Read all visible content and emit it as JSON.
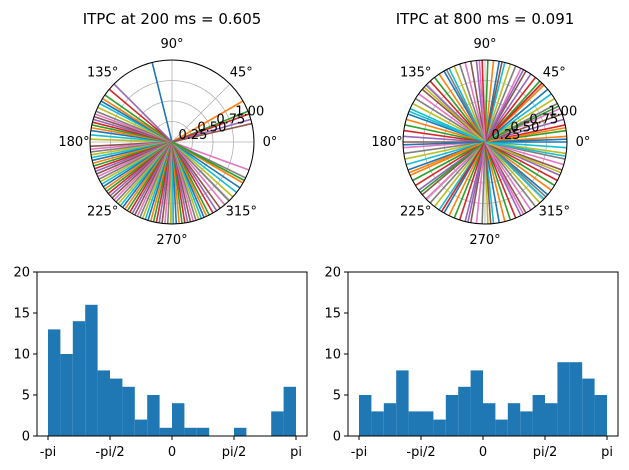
{
  "figure": {
    "background": "#ffffff",
    "bar_color": "#1f77b4",
    "tab10": [
      "#1f77b4",
      "#ff7f0e",
      "#2ca02c",
      "#d62728",
      "#9467bd",
      "#8c564b",
      "#e377c2",
      "#7f7f7f",
      "#bcbd22",
      "#17becf"
    ]
  },
  "chart_data": [
    {
      "type": "polar-lines",
      "title": "ITPC at 200 ms = 0.605",
      "angle_ticks": [
        "0°",
        "45°",
        "90°",
        "135°",
        "180°",
        "225°",
        "270°",
        "315°"
      ],
      "radius_ticks": [
        "0.25",
        "0.50",
        "0.75",
        "1.00"
      ],
      "rlim": [
        0,
        1
      ],
      "line_length": 1.0,
      "phase_angles_deg": [
        104,
        30,
        22,
        20,
        16,
        13,
        -20,
        -26,
        178,
        175,
        172,
        170,
        168,
        166,
        164,
        162,
        160,
        158,
        155,
        152,
        150,
        148,
        145,
        140,
        135,
        -177,
        -175,
        -173,
        -171,
        -169,
        -167,
        -165,
        -163,
        -161,
        -159,
        -157,
        -155,
        -153,
        -151,
        -149,
        -147,
        -145,
        -143,
        -141,
        -139,
        -137,
        -135,
        -133,
        -131,
        -129,
        -127,
        -125,
        -123,
        -121,
        -119,
        -117,
        -115,
        -113,
        -111,
        -109,
        -107,
        -105,
        -103,
        -101,
        -99,
        -97,
        -95,
        -93,
        -91,
        -89,
        -87,
        -85,
        -83,
        -81,
        -79,
        -77,
        -75,
        -73,
        -71,
        -69,
        -67,
        -65,
        -63,
        -60,
        -57,
        -54,
        -50,
        -46,
        -42,
        -38,
        -34,
        -30,
        -28
      ]
    },
    {
      "type": "polar-lines",
      "title": "ITPC at 800 ms = 0.091",
      "angle_ticks": [
        "0°",
        "45°",
        "90°",
        "135°",
        "180°",
        "225°",
        "270°",
        "315°"
      ],
      "radius_ticks": [
        "0.25",
        "0.50",
        "0.75",
        "1.00"
      ],
      "rlim": [
        0,
        1
      ],
      "line_length": 1.0,
      "phase_angles_deg": [
        0,
        4,
        8,
        12,
        16,
        20,
        24,
        28,
        32,
        36,
        40,
        44,
        48,
        52,
        56,
        60,
        64,
        68,
        72,
        76,
        80,
        84,
        88,
        92,
        96,
        100,
        104,
        108,
        112,
        116,
        120,
        124,
        128,
        132,
        136,
        140,
        144,
        148,
        152,
        156,
        160,
        164,
        168,
        172,
        176,
        180,
        184,
        188,
        192,
        196,
        200,
        204,
        208,
        212,
        216,
        220,
        224,
        228,
        232,
        236,
        240,
        244,
        248,
        252,
        256,
        260,
        264,
        268,
        272,
        276,
        280,
        284,
        288,
        292,
        296,
        300,
        304,
        308,
        312,
        316,
        320,
        324,
        328,
        332,
        336,
        340,
        344,
        348,
        352,
        356,
        2,
        10,
        26,
        46,
        62,
        78,
        94,
        118,
        138,
        158,
        182,
        202,
        218,
        238,
        258,
        274,
        298,
        318,
        338,
        350
      ]
    },
    {
      "type": "bar",
      "title": "",
      "xlabel": "",
      "ylabel": "",
      "x_tick_labels": [
        "-pi",
        "-pi/2",
        "0",
        "pi/2",
        "pi"
      ],
      "ylim": [
        0,
        20
      ],
      "y_ticks": [
        0,
        5,
        10,
        15,
        20
      ],
      "bin_count": 20,
      "values": [
        13,
        10,
        14,
        16,
        8,
        7,
        6,
        2,
        5,
        1,
        4,
        1,
        1,
        0,
        0,
        1,
        0,
        0,
        3,
        6
      ]
    },
    {
      "type": "bar",
      "title": "",
      "xlabel": "",
      "ylabel": "",
      "x_tick_labels": [
        "-pi",
        "-pi/2",
        "0",
        "pi/2",
        "pi"
      ],
      "ylim": [
        0,
        20
      ],
      "y_ticks": [
        0,
        5,
        10,
        15,
        20
      ],
      "bin_count": 20,
      "values": [
        5,
        3,
        4,
        8,
        3,
        3,
        2,
        5,
        6,
        8,
        4,
        2,
        4,
        3,
        5,
        4,
        9,
        9,
        7,
        5
      ]
    }
  ]
}
